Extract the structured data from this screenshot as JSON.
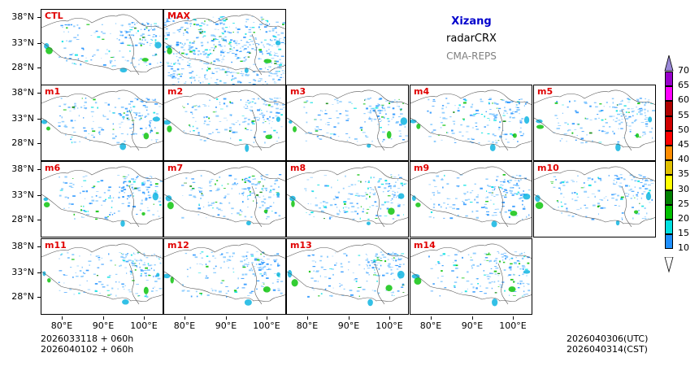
{
  "header": {
    "region": "Xizang",
    "variable": "radarCRX",
    "system": "CMA-REPS",
    "region_color": "#0000cc",
    "system_color": "#808080"
  },
  "panels": [
    {
      "label": "CTL"
    },
    {
      "label": "MAX"
    },
    {
      "label": "m1"
    },
    {
      "label": "m2"
    },
    {
      "label": "m3"
    },
    {
      "label": "m4"
    },
    {
      "label": "m5"
    },
    {
      "label": "m6"
    },
    {
      "label": "m7"
    },
    {
      "label": "m8"
    },
    {
      "label": "m9"
    },
    {
      "label": "m10"
    },
    {
      "label": "m11"
    },
    {
      "label": "m12"
    },
    {
      "label": "m13"
    },
    {
      "label": "m14"
    }
  ],
  "axes": {
    "y_ticks": [
      "38°N",
      "33°N",
      "28°N"
    ],
    "x_ticks": [
      "80°E",
      "90°E",
      "100°E"
    ]
  },
  "colorbar": {
    "levels": [
      "10",
      "15",
      "20",
      "25",
      "30",
      "35",
      "40",
      "45",
      "50",
      "55",
      "60",
      "65",
      "70"
    ],
    "colors": [
      "#1e90ff",
      "#00e0e0",
      "#00c000",
      "#008000",
      "#ffff00",
      "#e0c000",
      "#ff8c00",
      "#ff0000",
      "#d00000",
      "#b00000",
      "#ff00ff",
      "#9900cc",
      "#9a88d8"
    ]
  },
  "footer": {
    "init_utc": "2026033118  +  060h",
    "init_cst": "2026040102  +  060h",
    "valid_utc": "2026040306(UTC)",
    "valid_cst": "2026040314(CST)"
  }
}
